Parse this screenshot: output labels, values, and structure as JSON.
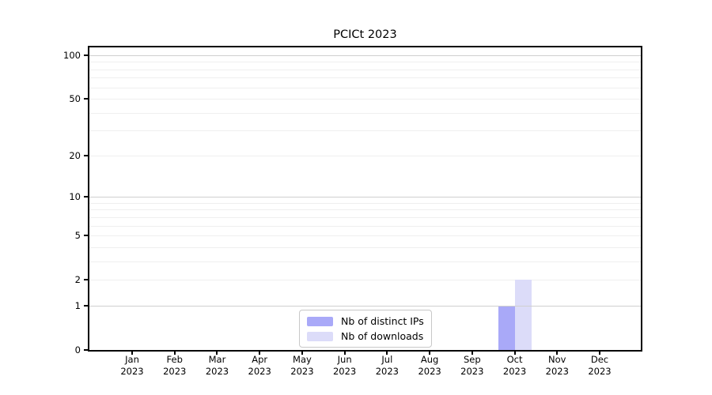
{
  "title": "PCICt 2023",
  "chart_data": {
    "type": "bar",
    "title": "PCICt 2023",
    "categories": [
      "Jan",
      "Feb",
      "Mar",
      "Apr",
      "May",
      "Jun",
      "Jul",
      "Aug",
      "Sep",
      "Oct",
      "Nov",
      "Dec"
    ],
    "category_year": "2023",
    "series": [
      {
        "name": "Nb of distinct IPs",
        "color": "#a9a9f8",
        "values": [
          0,
          0,
          0,
          0,
          0,
          0,
          0,
          0,
          0,
          1,
          0,
          0
        ]
      },
      {
        "name": "Nb of downloads",
        "color": "#dcdcf9",
        "values": [
          0,
          0,
          0,
          0,
          0,
          0,
          0,
          0,
          0,
          2,
          0,
          0
        ]
      }
    ],
    "y_axis": {
      "scale": "log1p",
      "tick_labels": [
        "0",
        "1",
        "2",
        "5",
        "10",
        "20",
        "50",
        "100"
      ],
      "tick_values": [
        0,
        1,
        2,
        5,
        10,
        20,
        50,
        100
      ],
      "top_value": 114,
      "grid_minor_values": [
        2,
        3,
        4,
        5,
        6,
        7,
        8,
        9,
        20,
        30,
        40,
        50,
        60,
        70,
        80,
        90
      ],
      "grid_major_values": [
        1,
        10,
        100
      ]
    },
    "legend": {
      "position": "bottom-center",
      "entries": [
        "Nb of distinct IPs",
        "Nb of downloads"
      ]
    },
    "xlabel": "",
    "ylabel": "",
    "grid": true
  },
  "colors": {
    "bar_distinct_ips": "#a9a9f8",
    "bar_downloads": "#dcdcf9",
    "grid_minor": "#efefef",
    "grid_major": "#cfcfcf",
    "axis": "#000000",
    "legend_border": "#c8c8c8",
    "background": "#ffffff",
    "text": "#000000"
  }
}
